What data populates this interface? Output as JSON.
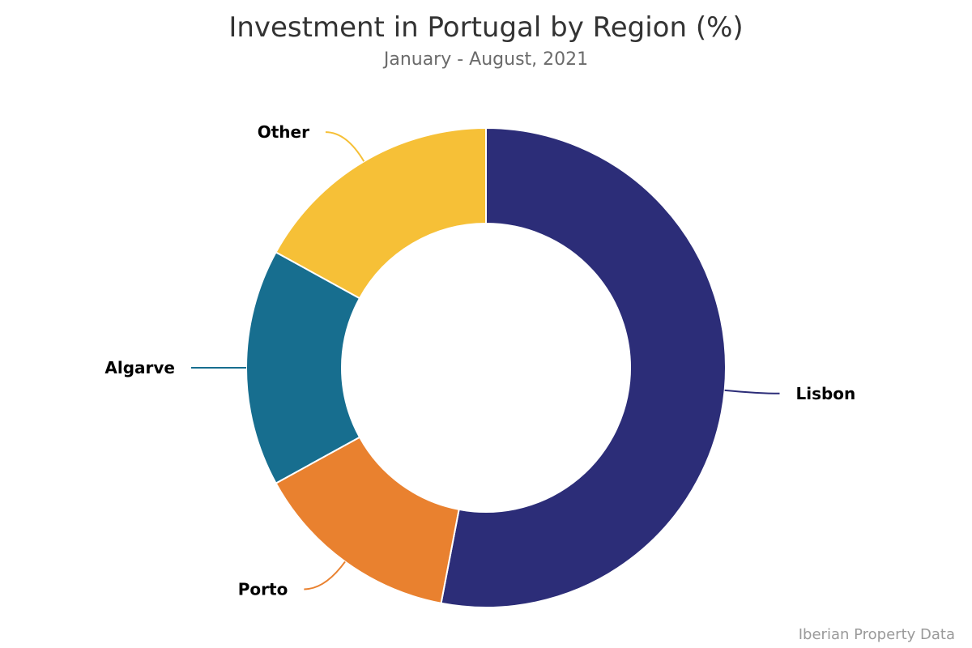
{
  "header": {
    "title": "Investment in Portugal by Region (%)",
    "subtitle": "January - August, 2021"
  },
  "footer": {
    "source": "Iberian Property Data"
  },
  "chart_data": {
    "type": "pie",
    "subtype": "donut",
    "title": "Investment in Portugal by Region (%)",
    "subtitle": "January - August, 2021",
    "categories": [
      "Lisbon",
      "Porto",
      "Algarve",
      "Other"
    ],
    "values": [
      53,
      14,
      16,
      17
    ],
    "colors": [
      "#2c2d78",
      "#e9812f",
      "#176e8f",
      "#f6c037"
    ],
    "start_angle_deg": 0,
    "direction": "clockwise",
    "legend": "none",
    "labels_outside": true,
    "source": "Iberian Property Data"
  }
}
